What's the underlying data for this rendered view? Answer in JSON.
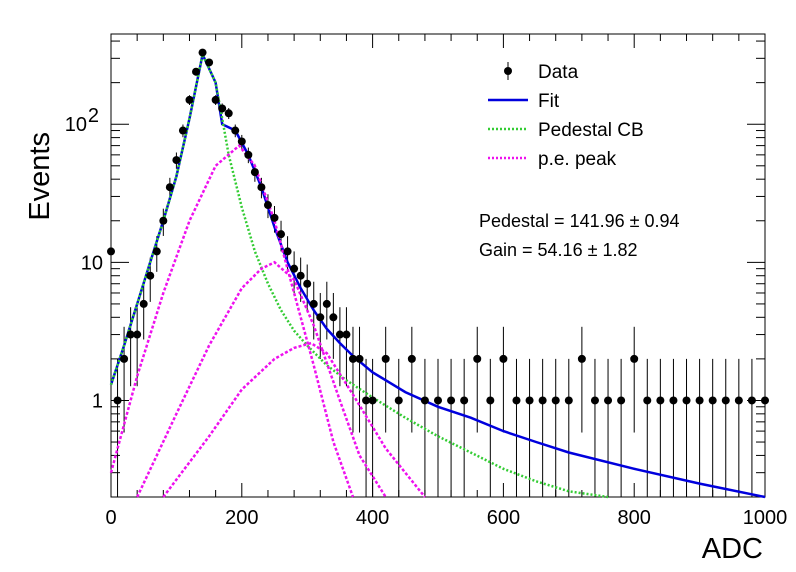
{
  "chart_data": {
    "type": "scatter",
    "title": "",
    "xlabel": "ADC",
    "ylabel": "Events",
    "xlim": [
      0,
      1000
    ],
    "ylim": [
      0.2,
      450
    ],
    "y_scale": "log",
    "x_ticks": [
      "0",
      "200",
      "400",
      "600",
      "800",
      "1000"
    ],
    "y_ticks": [
      {
        "value": 1,
        "label": "1"
      },
      {
        "value": 10,
        "label": "10"
      },
      {
        "value": 100,
        "label": "10",
        "exp": "2"
      }
    ],
    "legend_position": "top-right",
    "legend": [
      {
        "label": "Data",
        "style": "marker",
        "color": "#000000"
      },
      {
        "label": "Fit",
        "style": "solid",
        "color": "#0000dd"
      },
      {
        "label": "Pedestal CB",
        "style": "dotted",
        "color": "#33cc33"
      },
      {
        "label": "p.e. peak",
        "style": "dotted",
        "color": "#ee11ee"
      }
    ],
    "annotations": {
      "pedestal": "Pedestal = 141.96 ± 0.94",
      "gain": "Gain = 54.16 ± 1.82"
    },
    "fit": {
      "pedestal": 141.96,
      "pedestal_err": 0.94,
      "gain": 54.16,
      "gain_err": 1.82
    },
    "data": {
      "x": [
        0,
        10,
        20,
        30,
        40,
        50,
        60,
        70,
        80,
        90,
        100,
        110,
        120,
        130,
        140,
        150,
        160,
        170,
        180,
        190,
        200,
        210,
        220,
        230,
        240,
        250,
        260,
        270,
        280,
        290,
        300,
        310,
        320,
        330,
        340,
        350,
        360,
        370,
        380,
        390,
        400,
        420,
        440,
        460,
        480,
        500,
        520,
        540,
        560,
        580,
        600,
        620,
        640,
        660,
        680,
        700,
        720,
        740,
        760,
        780,
        800,
        820,
        840,
        860,
        880,
        900,
        920,
        940,
        960,
        980,
        1000
      ],
      "y": [
        12,
        1,
        2,
        3,
        3,
        5,
        8,
        12,
        20,
        35,
        55,
        90,
        150,
        240,
        330,
        280,
        150,
        130,
        120,
        90,
        75,
        60,
        45,
        35,
        26,
        21,
        16,
        12,
        9,
        8,
        7,
        5,
        4,
        5,
        4,
        3,
        3,
        2,
        2,
        1,
        1,
        2,
        1,
        2,
        1,
        1,
        1,
        1,
        2,
        1,
        2,
        1,
        1,
        1,
        1,
        1,
        2,
        1,
        1,
        1,
        2,
        1,
        1,
        1,
        1,
        1,
        1,
        1,
        1,
        1,
        1
      ]
    },
    "curves": [
      {
        "name": "Fit",
        "x": [
          0,
          20,
          40,
          60,
          80,
          100,
          120,
          140,
          160,
          170,
          190,
          210,
          230,
          250,
          270,
          290,
          310,
          330,
          350,
          370,
          400,
          450,
          500,
          550,
          600,
          650,
          700,
          800,
          900,
          1000
        ],
        "y": [
          1.3,
          2.5,
          5,
          10,
          20,
          42,
          110,
          320,
          200,
          100,
          90,
          60,
          35,
          18,
          10,
          6.5,
          4.5,
          3.3,
          2.6,
          2.1,
          1.6,
          1.15,
          0.9,
          0.75,
          0.6,
          0.5,
          0.42,
          0.32,
          0.25,
          0.2
        ]
      },
      {
        "name": "Pedestal CB",
        "x": [
          0,
          20,
          40,
          60,
          80,
          100,
          120,
          140,
          160,
          170,
          180,
          200,
          220,
          240,
          260,
          280,
          300,
          330,
          360,
          400,
          450,
          500,
          550,
          600,
          650,
          700,
          760
        ],
        "y": [
          1.3,
          2.5,
          5,
          10,
          20,
          42,
          110,
          320,
          200,
          110,
          60,
          25,
          12,
          7,
          4.5,
          3.2,
          2.5,
          1.8,
          1.4,
          1.05,
          0.75,
          0.55,
          0.42,
          0.32,
          0.26,
          0.22,
          0.2
        ]
      },
      {
        "name": "p.e. peak 1",
        "x": [
          0,
          40,
          80,
          120,
          160,
          196,
          220,
          250,
          280,
          310,
          340,
          370
        ],
        "y": [
          0.3,
          1.5,
          6,
          20,
          50,
          70,
          50,
          20,
          6,
          1.8,
          0.5,
          0.2
        ]
      },
      {
        "name": "p.e. peak 2",
        "x": [
          40,
          100,
          150,
          200,
          230,
          250,
          280,
          310,
          350,
          380,
          420
        ],
        "y": [
          0.2,
          0.8,
          2.5,
          6.5,
          9,
          10,
          7.5,
          3.5,
          1,
          0.4,
          0.2
        ]
      },
      {
        "name": "p.e. peak 3",
        "x": [
          80,
          150,
          200,
          250,
          280,
          306,
          330,
          370,
          420,
          480
        ],
        "y": [
          0.2,
          0.55,
          1.2,
          2,
          2.4,
          2.6,
          2.2,
          1.1,
          0.45,
          0.2
        ]
      }
    ]
  }
}
